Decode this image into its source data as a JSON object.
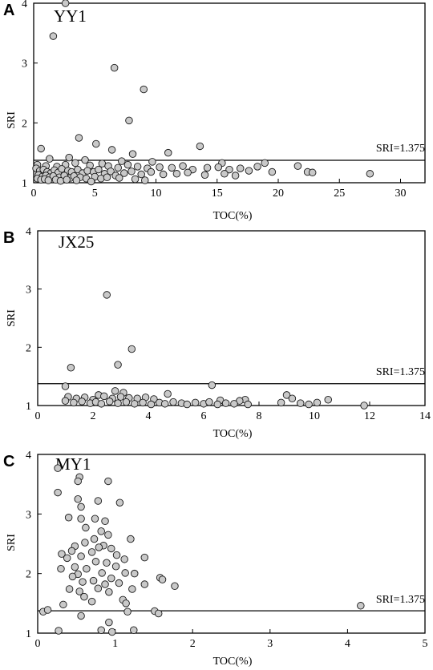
{
  "chart_data": [
    {
      "type": "scatter",
      "panel": "A",
      "well": "YY1",
      "xlabel": "TOC(%)",
      "ylabel": "SRI",
      "xlim": [
        0,
        32
      ],
      "ylim": [
        1,
        4
      ],
      "xticks": [
        0,
        5,
        10,
        15,
        20,
        25,
        30
      ],
      "yticks": [
        1,
        2,
        3,
        4
      ],
      "reference_line": {
        "value": 1.375,
        "label": "SRI=1.375"
      },
      "grid": false,
      "points": [
        [
          2.6,
          4.0
        ],
        [
          1.6,
          3.45
        ],
        [
          6.6,
          2.92
        ],
        [
          9.0,
          2.56
        ],
        [
          7.8,
          2.04
        ],
        [
          3.7,
          1.75
        ],
        [
          5.1,
          1.65
        ],
        [
          13.6,
          1.61
        ],
        [
          6.4,
          1.55
        ],
        [
          0.6,
          1.57
        ],
        [
          11.0,
          1.5
        ],
        [
          8.1,
          1.48
        ],
        [
          1.3,
          1.4
        ],
        [
          2.9,
          1.42
        ],
        [
          4.2,
          1.38
        ],
        [
          7.2,
          1.36
        ],
        [
          9.7,
          1.35
        ],
        [
          15.4,
          1.33
        ],
        [
          18.9,
          1.33
        ],
        [
          0.3,
          1.3
        ],
        [
          1.0,
          1.28
        ],
        [
          1.9,
          1.27
        ],
        [
          2.6,
          1.3
        ],
        [
          3.4,
          1.33
        ],
        [
          4.6,
          1.29
        ],
        [
          5.6,
          1.32
        ],
        [
          6.1,
          1.28
        ],
        [
          6.9,
          1.25
        ],
        [
          7.7,
          1.3
        ],
        [
          8.5,
          1.27
        ],
        [
          9.3,
          1.24
        ],
        [
          10.3,
          1.26
        ],
        [
          11.3,
          1.25
        ],
        [
          12.2,
          1.28
        ],
        [
          13.0,
          1.22
        ],
        [
          14.2,
          1.25
        ],
        [
          15.1,
          1.26
        ],
        [
          16.0,
          1.22
        ],
        [
          16.9,
          1.24
        ],
        [
          17.6,
          1.2
        ],
        [
          18.3,
          1.27
        ],
        [
          19.5,
          1.18
        ],
        [
          21.6,
          1.28
        ],
        [
          22.4,
          1.18
        ],
        [
          22.8,
          1.17
        ],
        [
          27.5,
          1.15
        ],
        [
          0.2,
          1.24
        ],
        [
          0.5,
          1.2
        ],
        [
          0.8,
          1.22
        ],
        [
          1.1,
          1.18
        ],
        [
          1.4,
          1.16
        ],
        [
          1.7,
          1.21
        ],
        [
          2.0,
          1.17
        ],
        [
          2.3,
          1.23
        ],
        [
          2.8,
          1.2
        ],
        [
          3.1,
          1.18
        ],
        [
          3.6,
          1.22
        ],
        [
          4.0,
          1.16
        ],
        [
          4.4,
          1.2
        ],
        [
          4.9,
          1.18
        ],
        [
          5.3,
          1.22
        ],
        [
          5.8,
          1.15
        ],
        [
          6.3,
          1.19
        ],
        [
          6.7,
          1.12
        ],
        [
          7.4,
          1.16
        ],
        [
          8.0,
          1.19
        ],
        [
          8.8,
          1.14
        ],
        [
          9.6,
          1.18
        ],
        [
          10.6,
          1.14
        ],
        [
          11.7,
          1.15
        ],
        [
          12.6,
          1.17
        ],
        [
          14.0,
          1.13
        ],
        [
          15.6,
          1.15
        ],
        [
          16.5,
          1.12
        ],
        [
          0.4,
          1.13
        ],
        [
          0.7,
          1.1
        ],
        [
          1.0,
          1.12
        ],
        [
          1.3,
          1.09
        ],
        [
          1.6,
          1.11
        ],
        [
          2.1,
          1.09
        ],
        [
          2.5,
          1.12
        ],
        [
          3.0,
          1.08
        ],
        [
          3.3,
          1.11
        ],
        [
          3.8,
          1.09
        ],
        [
          4.3,
          1.07
        ],
        [
          5.0,
          1.1
        ],
        [
          5.5,
          1.07
        ],
        [
          6.0,
          1.09
        ],
        [
          7.0,
          1.08
        ],
        [
          8.3,
          1.06
        ],
        [
          9.1,
          1.04
        ],
        [
          0.3,
          1.07
        ],
        [
          0.6,
          1.05
        ],
        [
          0.9,
          1.06
        ],
        [
          1.2,
          1.04
        ],
        [
          1.8,
          1.05
        ],
        [
          2.2,
          1.03
        ],
        [
          2.7,
          1.05
        ],
        [
          3.5,
          1.04
        ],
        [
          4.7,
          1.02
        ]
      ]
    },
    {
      "type": "scatter",
      "panel": "B",
      "well": "JX25",
      "xlabel": "TOC(%)",
      "ylabel": "SRI",
      "xlim": [
        0,
        14
      ],
      "ylim": [
        1,
        4
      ],
      "xticks": [
        0,
        2,
        4,
        6,
        8,
        10,
        12,
        14
      ],
      "yticks": [
        1,
        2,
        3,
        4
      ],
      "reference_line": {
        "value": 1.375,
        "label": "SRI=1.375"
      },
      "grid": false,
      "points": [
        [
          2.5,
          2.9
        ],
        [
          3.4,
          1.97
        ],
        [
          2.9,
          1.7
        ],
        [
          1.2,
          1.65
        ],
        [
          6.3,
          1.35
        ],
        [
          1.0,
          1.33
        ],
        [
          2.8,
          1.25
        ],
        [
          4.7,
          1.2
        ],
        [
          3.1,
          1.22
        ],
        [
          2.2,
          1.18
        ],
        [
          1.1,
          1.15
        ],
        [
          1.4,
          1.12
        ],
        [
          1.7,
          1.14
        ],
        [
          2.0,
          1.1
        ],
        [
          2.4,
          1.16
        ],
        [
          2.7,
          1.12
        ],
        [
          3.0,
          1.15
        ],
        [
          3.3,
          1.13
        ],
        [
          3.6,
          1.12
        ],
        [
          3.9,
          1.14
        ],
        [
          4.2,
          1.11
        ],
        [
          9.0,
          1.18
        ],
        [
          10.5,
          1.1
        ],
        [
          7.5,
          1.1
        ],
        [
          7.3,
          1.08
        ],
        [
          6.6,
          1.09
        ],
        [
          9.2,
          1.12
        ],
        [
          1.0,
          1.08
        ],
        [
          1.3,
          1.05
        ],
        [
          1.6,
          1.07
        ],
        [
          1.9,
          1.04
        ],
        [
          2.1,
          1.06
        ],
        [
          2.3,
          1.03
        ],
        [
          2.6,
          1.07
        ],
        [
          2.9,
          1.04
        ],
        [
          3.2,
          1.06
        ],
        [
          3.5,
          1.03
        ],
        [
          3.8,
          1.05
        ],
        [
          4.1,
          1.02
        ],
        [
          4.4,
          1.05
        ],
        [
          4.6,
          1.03
        ],
        [
          4.9,
          1.06
        ],
        [
          5.2,
          1.04
        ],
        [
          5.4,
          1.02
        ],
        [
          5.7,
          1.05
        ],
        [
          6.0,
          1.03
        ],
        [
          6.2,
          1.06
        ],
        [
          6.5,
          1.02
        ],
        [
          6.8,
          1.04
        ],
        [
          7.1,
          1.03
        ],
        [
          7.6,
          1.02
        ],
        [
          8.8,
          1.05
        ],
        [
          9.5,
          1.04
        ],
        [
          9.8,
          1.02
        ],
        [
          10.1,
          1.05
        ],
        [
          11.8,
          1.0
        ]
      ]
    },
    {
      "type": "scatter",
      "panel": "C",
      "well": "MY1",
      "xlabel": "TOC(%)",
      "ylabel": "SRI",
      "xlim": [
        0,
        5
      ],
      "ylim": [
        1,
        4
      ],
      "xticks": [
        0,
        1,
        2,
        3,
        4,
        5
      ],
      "yticks": [
        1,
        2,
        3,
        4
      ],
      "reference_line": {
        "value": 1.375,
        "label": "SRI=1.375"
      },
      "grid": false,
      "points": [
        [
          0.26,
          3.77
        ],
        [
          0.54,
          3.62
        ],
        [
          0.52,
          3.55
        ],
        [
          0.91,
          3.55
        ],
        [
          0.26,
          3.36
        ],
        [
          0.52,
          3.25
        ],
        [
          0.78,
          3.22
        ],
        [
          1.06,
          3.19
        ],
        [
          0.56,
          3.12
        ],
        [
          0.4,
          2.94
        ],
        [
          0.56,
          2.92
        ],
        [
          0.74,
          2.92
        ],
        [
          0.87,
          2.88
        ],
        [
          0.62,
          2.77
        ],
        [
          0.82,
          2.71
        ],
        [
          0.91,
          2.65
        ],
        [
          0.73,
          2.58
        ],
        [
          1.2,
          2.58
        ],
        [
          0.61,
          2.52
        ],
        [
          0.85,
          2.47
        ],
        [
          0.48,
          2.46
        ],
        [
          0.79,
          2.44
        ],
        [
          0.95,
          2.42
        ],
        [
          0.44,
          2.38
        ],
        [
          0.7,
          2.36
        ],
        [
          0.31,
          2.33
        ],
        [
          1.02,
          2.31
        ],
        [
          0.56,
          2.29
        ],
        [
          1.12,
          2.24
        ],
        [
          0.38,
          2.26
        ],
        [
          0.75,
          2.2
        ],
        [
          0.89,
          2.18
        ],
        [
          1.38,
          2.27
        ],
        [
          0.48,
          2.11
        ],
        [
          0.63,
          2.08
        ],
        [
          1.01,
          2.12
        ],
        [
          0.3,
          2.08
        ],
        [
          0.52,
          1.99
        ],
        [
          0.83,
          2.01
        ],
        [
          1.13,
          2.01
        ],
        [
          1.25,
          2.0
        ],
        [
          0.45,
          1.95
        ],
        [
          0.95,
          1.92
        ],
        [
          0.72,
          1.88
        ],
        [
          1.58,
          1.93
        ],
        [
          1.61,
          1.9
        ],
        [
          0.58,
          1.86
        ],
        [
          0.87,
          1.82
        ],
        [
          1.05,
          1.84
        ],
        [
          1.38,
          1.82
        ],
        [
          0.41,
          1.74
        ],
        [
          0.78,
          1.75
        ],
        [
          1.22,
          1.74
        ],
        [
          1.77,
          1.79
        ],
        [
          0.54,
          1.7
        ],
        [
          0.92,
          1.69
        ],
        [
          0.6,
          1.61
        ],
        [
          1.1,
          1.56
        ],
        [
          0.33,
          1.48
        ],
        [
          0.7,
          1.53
        ],
        [
          1.14,
          1.5
        ],
        [
          0.07,
          1.36
        ],
        [
          0.13,
          1.39
        ],
        [
          0.56,
          1.29
        ],
        [
          1.51,
          1.37
        ],
        [
          1.56,
          1.33
        ],
        [
          4.17,
          1.46
        ],
        [
          0.92,
          1.18
        ],
        [
          0.27,
          1.04
        ],
        [
          0.82,
          1.05
        ],
        [
          0.96,
          1.02
        ],
        [
          1.24,
          1.05
        ],
        [
          1.16,
          1.36
        ]
      ]
    }
  ]
}
